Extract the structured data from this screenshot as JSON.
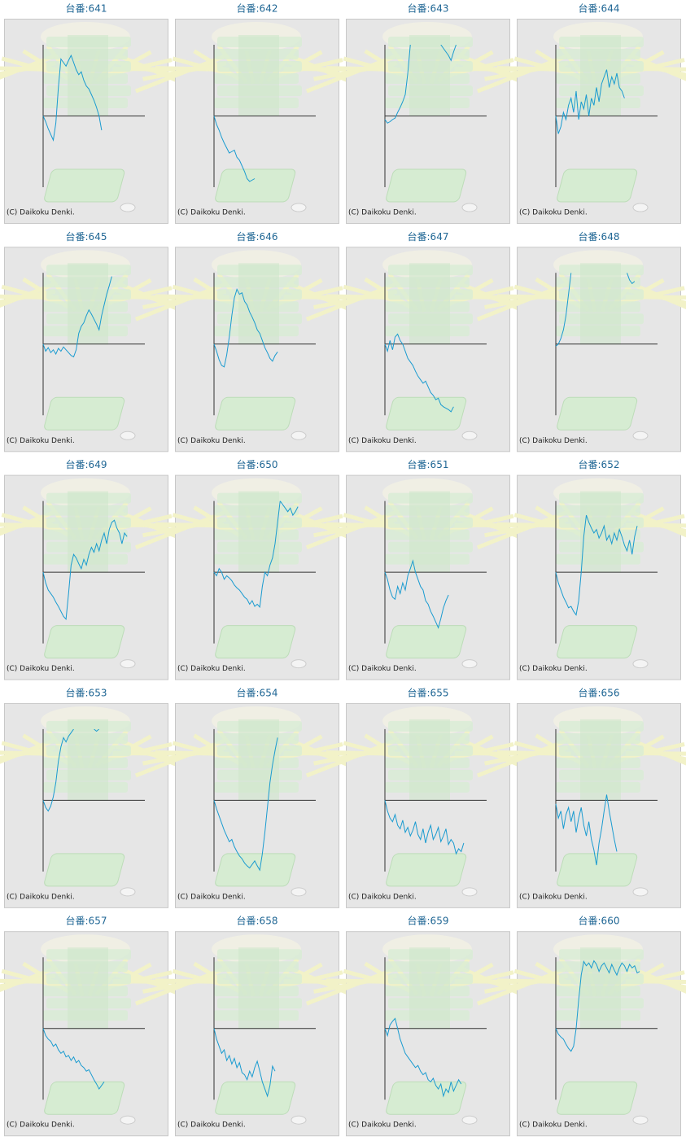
{
  "chart_data": [
    {
      "type": "line",
      "title": "台番:641",
      "credit": "(C) Daikoku Denki.",
      "color": "#1a9bd0",
      "xlim": [
        0,
        40
      ],
      "ylim": [
        -100,
        100
      ],
      "values": [
        0,
        -8,
        -18,
        -26,
        -34,
        -10,
        40,
        80,
        75,
        70,
        78,
        85,
        75,
        65,
        58,
        62,
        50,
        42,
        38,
        30,
        22,
        12,
        0,
        -20
      ]
    },
    {
      "type": "line",
      "title": "台番:642",
      "credit": "(C) Daikoku Denki.",
      "color": "#1a9bd0",
      "xlim": [
        0,
        40
      ],
      "ylim": [
        -100,
        100
      ],
      "values": [
        0,
        -12,
        -20,
        -30,
        -38,
        -45,
        -52,
        -50,
        -48,
        -58,
        -62,
        -70,
        -78,
        -88,
        -92,
        -90,
        -88
      ]
    },
    {
      "type": "line",
      "title": "台番:643",
      "credit": "(C) Daikoku Denki.",
      "color": "#1a9bd0",
      "xlim": [
        0,
        40
      ],
      "ylim": [
        -100,
        100
      ],
      "values": [
        -5,
        -10,
        -8,
        -5,
        -3,
        5,
        12,
        20,
        30,
        60,
        100,
        null,
        null,
        null,
        null,
        null,
        null,
        null,
        null,
        null,
        null,
        null,
        100,
        95,
        90,
        85,
        78,
        90,
        100
      ]
    },
    {
      "type": "line",
      "title": "台番:644",
      "credit": "(C) Daikoku Denki.",
      "color": "#1a9bd0",
      "xlim": [
        0,
        40
      ],
      "ylim": [
        -100,
        100
      ],
      "values": [
        0,
        -25,
        -15,
        5,
        -5,
        15,
        25,
        5,
        35,
        -5,
        20,
        10,
        30,
        0,
        25,
        15,
        40,
        20,
        45,
        55,
        65,
        40,
        55,
        45,
        60,
        40,
        35,
        25
      ]
    },
    {
      "type": "line",
      "title": "台番:645",
      "credit": "(C) Daikoku Denki.",
      "color": "#1a9bd0",
      "xlim": [
        0,
        40
      ],
      "ylim": [
        -100,
        100
      ],
      "values": [
        0,
        -10,
        -5,
        -12,
        -8,
        -14,
        -6,
        -10,
        -4,
        -8,
        -12,
        -16,
        -18,
        -8,
        15,
        25,
        30,
        40,
        48,
        42,
        35,
        28,
        20,
        40,
        55,
        70,
        82,
        95
      ]
    },
    {
      "type": "line",
      "title": "台番:646",
      "credit": "(C) Daikoku Denki.",
      "color": "#1a9bd0",
      "xlim": [
        0,
        40
      ],
      "ylim": [
        -100,
        100
      ],
      "values": [
        0,
        -10,
        -22,
        -30,
        -32,
        -15,
        10,
        40,
        65,
        77,
        70,
        72,
        60,
        55,
        45,
        38,
        30,
        20,
        15,
        5,
        -5,
        -12,
        -20,
        -24,
        -16,
        -11
      ]
    },
    {
      "type": "line",
      "title": "台番:647",
      "credit": "(C) Daikoku Denki.",
      "color": "#1a9bd0",
      "xlim": [
        0,
        40
      ],
      "ylim": [
        -100,
        100
      ],
      "values": [
        0,
        -10,
        5,
        -8,
        10,
        14,
        5,
        0,
        -10,
        -20,
        -25,
        -30,
        -38,
        -45,
        -50,
        -55,
        -52,
        -60,
        -68,
        -72,
        -78,
        -76,
        -85,
        -88,
        -90,
        -92,
        -95,
        -88
      ]
    },
    {
      "type": "line",
      "title": "台番:648",
      "credit": "(C) Daikoku Denki.",
      "color": "#1a9bd0",
      "xlim": [
        0,
        40
      ],
      "ylim": [
        -100,
        100
      ],
      "values": [
        -3,
        0,
        8,
        20,
        40,
        70,
        100,
        null,
        null,
        null,
        null,
        null,
        null,
        null,
        null,
        null,
        null,
        null,
        null,
        null,
        null,
        null,
        null,
        null,
        null,
        null,
        null,
        null,
        100,
        90,
        85,
        88
      ]
    },
    {
      "type": "line",
      "title": "台番:649",
      "credit": "(C) Daikoku Denki.",
      "color": "#1a9bd0",
      "xlim": [
        0,
        40
      ],
      "ylim": [
        -100,
        100
      ],
      "values": [
        0,
        -15,
        -25,
        -30,
        -35,
        -42,
        -48,
        -55,
        -62,
        -66,
        -30,
        10,
        25,
        20,
        12,
        5,
        18,
        10,
        25,
        35,
        28,
        40,
        30,
        45,
        55,
        40,
        60,
        70,
        73,
        62,
        55,
        40,
        55,
        50
      ]
    },
    {
      "type": "line",
      "title": "台番:650",
      "credit": "(C) Daikoku Denki.",
      "color": "#1a9bd0",
      "xlim": [
        0,
        40
      ],
      "ylim": [
        -100,
        100
      ],
      "values": [
        0,
        -5,
        5,
        0,
        -10,
        -5,
        -8,
        -12,
        -18,
        -22,
        -25,
        -30,
        -35,
        -38,
        -45,
        -40,
        -48,
        -45,
        -49,
        -20,
        0,
        -5,
        10,
        20,
        40,
        70,
        100,
        95,
        90,
        85,
        90,
        80,
        85,
        92
      ]
    },
    {
      "type": "line",
      "title": "台番:651",
      "credit": "(C) Daikoku Denki.",
      "color": "#1a9bd0",
      "xlim": [
        0,
        40
      ],
      "ylim": [
        -100,
        100
      ],
      "values": [
        0,
        -10,
        -25,
        -35,
        -38,
        -20,
        -30,
        -15,
        -25,
        -5,
        5,
        16,
        0,
        -10,
        -20,
        -25,
        -40,
        -45,
        -55,
        -62,
        -70,
        -78,
        -65,
        -50,
        -40,
        -32
      ]
    },
    {
      "type": "line",
      "title": "台番:652",
      "credit": "(C) Daikoku Denki.",
      "color": "#1a9bd0",
      "xlim": [
        0,
        40
      ],
      "ylim": [
        -100,
        100
      ],
      "values": [
        0,
        -15,
        -25,
        -35,
        -42,
        -50,
        -48,
        -55,
        -60,
        -40,
        0,
        50,
        80,
        70,
        62,
        55,
        60,
        48,
        55,
        65,
        45,
        52,
        40,
        55,
        45,
        60,
        50,
        38,
        30,
        45,
        25,
        50,
        65
      ]
    },
    {
      "type": "line",
      "title": "台番:653",
      "credit": "(C) Daikoku Denki.",
      "color": "#1a9bd0",
      "xlim": [
        0,
        40
      ],
      "ylim": [
        -100,
        100
      ],
      "values": [
        0,
        -10,
        -15,
        -8,
        5,
        25,
        55,
        75,
        88,
        82,
        90,
        95,
        100,
        null,
        null,
        null,
        null,
        null,
        null,
        null,
        100,
        97,
        100
      ]
    },
    {
      "type": "line",
      "title": "台番:654",
      "credit": "(C) Daikoku Denki.",
      "color": "#1a9bd0",
      "xlim": [
        0,
        40
      ],
      "ylim": [
        -100,
        100
      ],
      "values": [
        0,
        -12,
        -22,
        -32,
        -42,
        -50,
        -58,
        -55,
        -65,
        -72,
        -78,
        -82,
        -88,
        -92,
        -95,
        -90,
        -85,
        -92,
        -98,
        -75,
        -45,
        -10,
        25,
        50,
        70,
        88
      ]
    },
    {
      "type": "line",
      "title": "台番:655",
      "credit": "(C) Daikoku Denki.",
      "color": "#1a9bd0",
      "xlim": [
        0,
        40
      ],
      "ylim": [
        -100,
        100
      ],
      "values": [
        0,
        -15,
        -25,
        -30,
        -20,
        -35,
        -40,
        -28,
        -45,
        -38,
        -50,
        -42,
        -30,
        -48,
        -55,
        -40,
        -60,
        -45,
        -35,
        -55,
        -48,
        -38,
        -58,
        -50,
        -40,
        -62,
        -55,
        -60,
        -75,
        -68,
        -72,
        -60
      ]
    },
    {
      "type": "line",
      "title": "台番:656",
      "credit": "(C) Daikoku Denki.",
      "color": "#1a9bd0",
      "xlim": [
        0,
        40
      ],
      "ylim": [
        -100,
        100
      ],
      "values": [
        -5,
        -25,
        -15,
        -40,
        -20,
        -10,
        -30,
        -15,
        -45,
        -25,
        -10,
        -35,
        -50,
        -30,
        -55,
        -70,
        -91,
        -60,
        -40,
        -15,
        8,
        -15,
        -35,
        -55,
        -72
      ]
    },
    {
      "type": "line",
      "title": "台番:657",
      "credit": "(C) Daikoku Denki.",
      "color": "#1a9bd0",
      "xlim": [
        0,
        40
      ],
      "ylim": [
        -100,
        100
      ],
      "values": [
        0,
        -10,
        -15,
        -18,
        -25,
        -22,
        -30,
        -35,
        -32,
        -40,
        -38,
        -45,
        -40,
        -48,
        -45,
        -52,
        -55,
        -60,
        -58,
        -65,
        -72,
        -78,
        -85,
        -80,
        -75
      ]
    },
    {
      "type": "line",
      "title": "台番:658",
      "credit": "(C) Daikoku Denki.",
      "color": "#1a9bd0",
      "xlim": [
        0,
        40
      ],
      "ylim": [
        -100,
        100
      ],
      "values": [
        0,
        -15,
        -25,
        -35,
        -30,
        -45,
        -38,
        -50,
        -42,
        -55,
        -48,
        -62,
        -65,
        -72,
        -60,
        -68,
        -55,
        -46,
        -60,
        -75,
        -85,
        -95,
        -80,
        -53,
        -60
      ]
    },
    {
      "type": "line",
      "title": "台番:659",
      "credit": "(C) Daikoku Denki.",
      "color": "#1a9bd0",
      "xlim": [
        0,
        40
      ],
      "ylim": [
        -100,
        100
      ],
      "values": [
        0,
        -10,
        5,
        10,
        14,
        0,
        -15,
        -25,
        -35,
        -40,
        -45,
        -50,
        -55,
        -52,
        -60,
        -65,
        -62,
        -72,
        -75,
        -70,
        -80,
        -85,
        -78,
        -95,
        -85,
        -90,
        -75,
        -88,
        -80,
        -72,
        -78
      ]
    },
    {
      "type": "line",
      "title": "台番:660",
      "credit": "(C) Daikoku Denki.",
      "color": "#1a9bd0",
      "xlim": [
        0,
        40
      ],
      "ylim": [
        -100,
        100
      ],
      "values": [
        0,
        -8,
        -12,
        -15,
        -22,
        -28,
        -32,
        -25,
        0,
        40,
        75,
        94,
        88,
        92,
        85,
        95,
        90,
        80,
        88,
        92,
        85,
        78,
        90,
        82,
        75,
        85,
        92,
        88,
        80,
        90,
        85,
        88,
        78,
        80
      ]
    }
  ]
}
